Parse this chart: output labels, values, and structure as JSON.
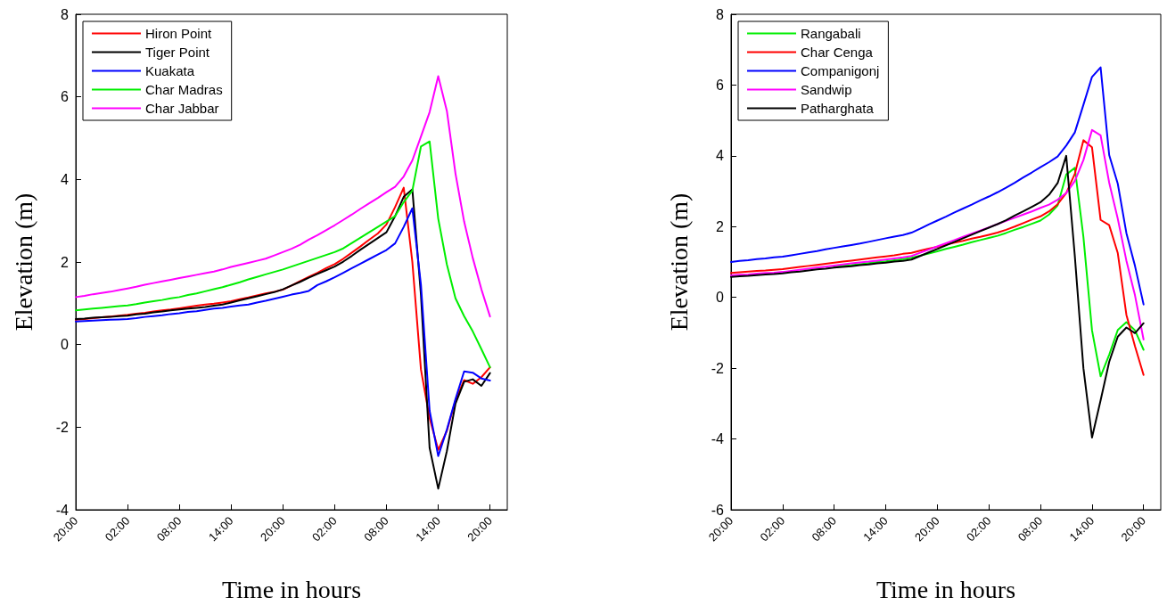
{
  "chart_data": [
    {
      "type": "line",
      "xlabel": "Time in hours",
      "ylabel": "Elevation (m)",
      "ylim": [
        -4,
        8
      ],
      "categories": [
        "20:00",
        null,
        null,
        null,
        null,
        null,
        "02:00",
        null,
        null,
        null,
        null,
        null,
        "08:00",
        null,
        null,
        null,
        null,
        null,
        "14:00",
        null,
        null,
        null,
        null,
        null,
        "20:00",
        null,
        null,
        null,
        null,
        null,
        "02:00",
        null,
        null,
        null,
        null,
        null,
        "08:00",
        null,
        null,
        null,
        null,
        null,
        "14:00",
        null,
        null,
        null,
        null,
        null,
        "20:00",
        null,
        null
      ],
      "yticks": [
        -4,
        -2,
        0,
        2,
        4,
        6,
        8
      ],
      "grid": false,
      "legend": "top left",
      "marker": "none",
      "line_style": "solid",
      "series": [
        {
          "name": "Hiron Point",
          "color": "#ff0000",
          "values": [
            0.6,
            0.62,
            0.64,
            0.66,
            0.68,
            0.7,
            0.72,
            0.75,
            0.77,
            0.8,
            0.83,
            0.85,
            0.88,
            0.91,
            0.94,
            0.97,
            0.99,
            1.02,
            1.05,
            1.1,
            1.14,
            1.19,
            1.24,
            1.28,
            1.33,
            1.43,
            1.54,
            1.64,
            1.74,
            1.85,
            1.95,
            2.08,
            2.23,
            2.38,
            2.54,
            2.69,
            2.91,
            3.33,
            3.8,
            2.0,
            -0.61,
            -1.78,
            -2.55,
            -2.09,
            -1.35,
            -0.86,
            -0.95,
            -0.79,
            -0.55,
            null,
            null
          ]
        },
        {
          "name": "Tiger Point",
          "color": "#000000",
          "values": [
            0.62,
            0.63,
            0.65,
            0.66,
            0.67,
            0.69,
            0.7,
            0.73,
            0.75,
            0.78,
            0.8,
            0.83,
            0.85,
            0.87,
            0.89,
            0.91,
            0.94,
            0.97,
            1.02,
            1.07,
            1.12,
            1.17,
            1.22,
            1.27,
            1.34,
            1.43,
            1.52,
            1.62,
            1.71,
            1.8,
            1.89,
            2.01,
            2.15,
            2.3,
            2.44,
            2.58,
            2.72,
            3.11,
            3.58,
            3.76,
            1.19,
            -2.5,
            -3.49,
            -2.58,
            -1.43,
            -0.9,
            -0.84,
            -1.0,
            -0.69,
            null,
            null
          ]
        },
        {
          "name": "Kuakata",
          "color": "#0000ff",
          "values": [
            0.56,
            0.57,
            0.58,
            0.59,
            0.6,
            0.61,
            0.62,
            0.64,
            0.67,
            0.69,
            0.71,
            0.74,
            0.76,
            0.79,
            0.81,
            0.84,
            0.87,
            0.89,
            0.92,
            0.95,
            0.97,
            1.02,
            1.06,
            1.11,
            1.16,
            1.21,
            1.25,
            1.3,
            1.44,
            1.53,
            1.63,
            1.74,
            1.85,
            1.96,
            2.07,
            2.18,
            2.29,
            2.45,
            2.85,
            3.3,
            1.44,
            -1.6,
            -2.7,
            -2.06,
            -1.32,
            -0.65,
            -0.68,
            -0.82,
            -0.87,
            null,
            null
          ]
        },
        {
          "name": "Char Madras",
          "color": "#00ee00",
          "values": [
            0.83,
            0.85,
            0.87,
            0.89,
            0.91,
            0.93,
            0.95,
            0.98,
            1.02,
            1.05,
            1.08,
            1.12,
            1.15,
            1.2,
            1.24,
            1.29,
            1.34,
            1.39,
            1.45,
            1.51,
            1.58,
            1.64,
            1.7,
            1.76,
            1.82,
            1.89,
            1.96,
            2.03,
            2.1,
            2.17,
            2.24,
            2.33,
            2.46,
            2.59,
            2.72,
            2.85,
            2.98,
            3.11,
            3.45,
            3.73,
            4.8,
            4.92,
            3.05,
            1.94,
            1.12,
            0.69,
            0.32,
            -0.11,
            -0.55,
            null,
            null
          ]
        },
        {
          "name": "Char Jabbar",
          "color": "#ff00ff",
          "values": [
            1.15,
            1.18,
            1.22,
            1.25,
            1.28,
            1.32,
            1.36,
            1.4,
            1.45,
            1.49,
            1.53,
            1.57,
            1.61,
            1.65,
            1.69,
            1.73,
            1.77,
            1.82,
            1.88,
            1.93,
            1.98,
            2.03,
            2.08,
            2.16,
            2.24,
            2.32,
            2.42,
            2.54,
            2.65,
            2.77,
            2.89,
            3.02,
            3.15,
            3.29,
            3.42,
            3.55,
            3.69,
            3.82,
            4.07,
            4.46,
            5.04,
            5.63,
            6.5,
            5.66,
            4.14,
            2.98,
            2.1,
            1.34,
            0.68,
            null,
            null
          ]
        }
      ]
    },
    {
      "type": "line",
      "xlabel": "Time in hours",
      "ylabel": "Elevation (m)",
      "ylim": [
        -6,
        8
      ],
      "categories": [
        "20:00",
        null,
        null,
        null,
        null,
        null,
        "02:00",
        null,
        null,
        null,
        null,
        null,
        "08:00",
        null,
        null,
        null,
        null,
        null,
        "14:00",
        null,
        null,
        null,
        null,
        null,
        "20:00",
        null,
        null,
        null,
        null,
        null,
        "02:00",
        null,
        null,
        null,
        null,
        null,
        "08:00",
        null,
        null,
        null,
        null,
        null,
        "14:00",
        null,
        null,
        null,
        null,
        null,
        "20:00",
        null,
        null
      ],
      "yticks": [
        -6,
        -4,
        -2,
        0,
        2,
        4,
        6,
        8
      ],
      "grid": false,
      "legend": "top left",
      "marker": "none",
      "line_style": "solid",
      "series": [
        {
          "name": "Rangabali",
          "color": "#00ee00",
          "values": [
            null,
            null,
            null,
            null,
            null,
            null,
            null,
            null,
            null,
            null,
            null,
            null,
            0.86,
            0.89,
            0.91,
            0.94,
            0.97,
            1.0,
            1.02,
            1.05,
            1.08,
            1.12,
            1.18,
            1.24,
            1.3,
            1.37,
            1.43,
            1.49,
            1.56,
            1.62,
            1.68,
            1.74,
            1.82,
            1.91,
            1.99,
            2.08,
            2.17,
            2.34,
            2.6,
            3.47,
            3.66,
            1.71,
            -0.93,
            -2.23,
            -1.62,
            -0.92,
            -0.7,
            -0.93,
            -1.48,
            null,
            null
          ]
        },
        {
          "name": "Char Cenga",
          "color": "#ff0000",
          "values": [
            0.69,
            0.71,
            0.73,
            0.75,
            0.76,
            0.78,
            0.8,
            0.83,
            0.86,
            0.89,
            0.92,
            0.95,
            0.98,
            1.01,
            1.04,
            1.07,
            1.1,
            1.13,
            1.16,
            1.19,
            1.23,
            1.26,
            1.32,
            1.38,
            1.43,
            1.49,
            1.55,
            1.6,
            1.66,
            1.71,
            1.77,
            1.83,
            1.91,
            2.0,
            2.1,
            2.2,
            2.29,
            2.43,
            2.63,
            2.95,
            3.49,
            4.44,
            4.24,
            2.19,
            2.04,
            1.25,
            -0.49,
            -1.38,
            -2.19,
            null,
            null
          ]
        },
        {
          "name": "Companigonj",
          "color": "#0000ff",
          "values": [
            1.0,
            1.03,
            1.05,
            1.08,
            1.1,
            1.13,
            1.15,
            1.19,
            1.23,
            1.27,
            1.31,
            1.36,
            1.4,
            1.44,
            1.48,
            1.52,
            1.57,
            1.62,
            1.67,
            1.72,
            1.76,
            1.83,
            1.94,
            2.06,
            2.17,
            2.28,
            2.4,
            2.51,
            2.62,
            2.74,
            2.85,
            2.97,
            3.1,
            3.24,
            3.39,
            3.53,
            3.68,
            3.82,
            3.98,
            4.29,
            4.66,
            5.44,
            6.23,
            6.5,
            4.02,
            3.21,
            1.82,
            0.89,
            -0.2,
            null,
            null
          ]
        },
        {
          "name": "Sandwip",
          "color": "#ff00ff",
          "values": [
            0.62,
            0.64,
            0.65,
            0.67,
            0.69,
            0.7,
            0.72,
            0.75,
            0.78,
            0.81,
            0.84,
            0.87,
            0.9,
            0.93,
            0.96,
            0.99,
            1.01,
            1.04,
            1.07,
            1.1,
            1.13,
            1.17,
            1.26,
            1.35,
            1.44,
            1.53,
            1.62,
            1.71,
            1.8,
            1.89,
            1.98,
            2.07,
            2.16,
            2.25,
            2.34,
            2.43,
            2.53,
            2.62,
            2.76,
            2.95,
            3.29,
            3.88,
            4.73,
            4.58,
            3.24,
            2.22,
            1.04,
            0.06,
            -1.19,
            null,
            null
          ]
        },
        {
          "name": "Patharghata",
          "color": "#000000",
          "values": [
            0.58,
            0.6,
            0.61,
            0.63,
            0.65,
            0.66,
            0.68,
            0.71,
            0.73,
            0.76,
            0.79,
            0.81,
            0.84,
            0.86,
            0.88,
            0.91,
            0.93,
            0.96,
            0.98,
            1.01,
            1.03,
            1.07,
            1.17,
            1.27,
            1.37,
            1.47,
            1.57,
            1.67,
            1.77,
            1.87,
            1.97,
            2.07,
            2.18,
            2.31,
            2.43,
            2.56,
            2.69,
            2.9,
            3.23,
            4.0,
            1.17,
            -2.0,
            -3.96,
            -2.91,
            -1.82,
            -1.11,
            -0.85,
            -1.01,
            -0.73,
            null,
            null
          ]
        }
      ]
    }
  ]
}
